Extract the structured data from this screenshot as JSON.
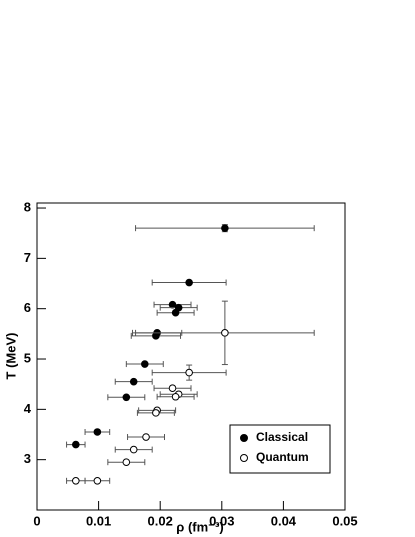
{
  "chart_data": {
    "type": "scatter",
    "xlabel": "ρ (fm⁻³)",
    "ylabel": "T (MeV)",
    "xlim": [
      0,
      0.05
    ],
    "ylim": [
      2,
      8.1
    ],
    "xticks": [
      0,
      0.01,
      0.02,
      0.03,
      0.04,
      0.05
    ],
    "yticks": [
      3,
      4,
      5,
      6,
      7,
      8
    ],
    "legend": "lower right",
    "series": [
      {
        "name": "Classical",
        "color": "#000000",
        "filled": true,
        "x": [
          0.0305,
          0.0247,
          0.022,
          0.023,
          0.0225,
          0.0195,
          0.0193,
          0.0175,
          0.0157,
          0.0145,
          0.0098,
          0.0063
        ],
        "values": [
          7.6,
          6.52,
          6.08,
          6.02,
          5.92,
          5.52,
          5.46,
          4.9,
          4.55,
          4.24,
          3.55,
          3.3
        ],
        "xerr": [
          0.0145,
          0.006,
          0.003,
          0.003,
          0.003,
          0.004,
          0.004,
          0.003,
          0.003,
          0.003,
          0.002,
          0.0015
        ],
        "yerr": [
          0.07,
          null,
          null,
          null,
          null,
          null,
          null,
          null,
          null,
          null,
          null,
          null
        ]
      },
      {
        "name": "Quantum",
        "color": "#000000",
        "filled": false,
        "x": [
          0.0305,
          0.0247,
          0.022,
          0.023,
          0.0225,
          0.0195,
          0.0193,
          0.0177,
          0.0157,
          0.0145,
          0.0098,
          0.0063
        ],
        "values": [
          5.52,
          4.73,
          4.42,
          4.3,
          4.25,
          3.98,
          3.93,
          3.45,
          3.2,
          2.95,
          2.58,
          2.58
        ],
        "xerr": [
          0.0145,
          0.006,
          0.003,
          0.003,
          0.003,
          0.003,
          0.003,
          0.003,
          0.003,
          0.003,
          0.002,
          0.0015
        ],
        "yerr": [
          0.63,
          0.15,
          null,
          null,
          null,
          null,
          null,
          null,
          null,
          null,
          null,
          null
        ]
      }
    ]
  }
}
